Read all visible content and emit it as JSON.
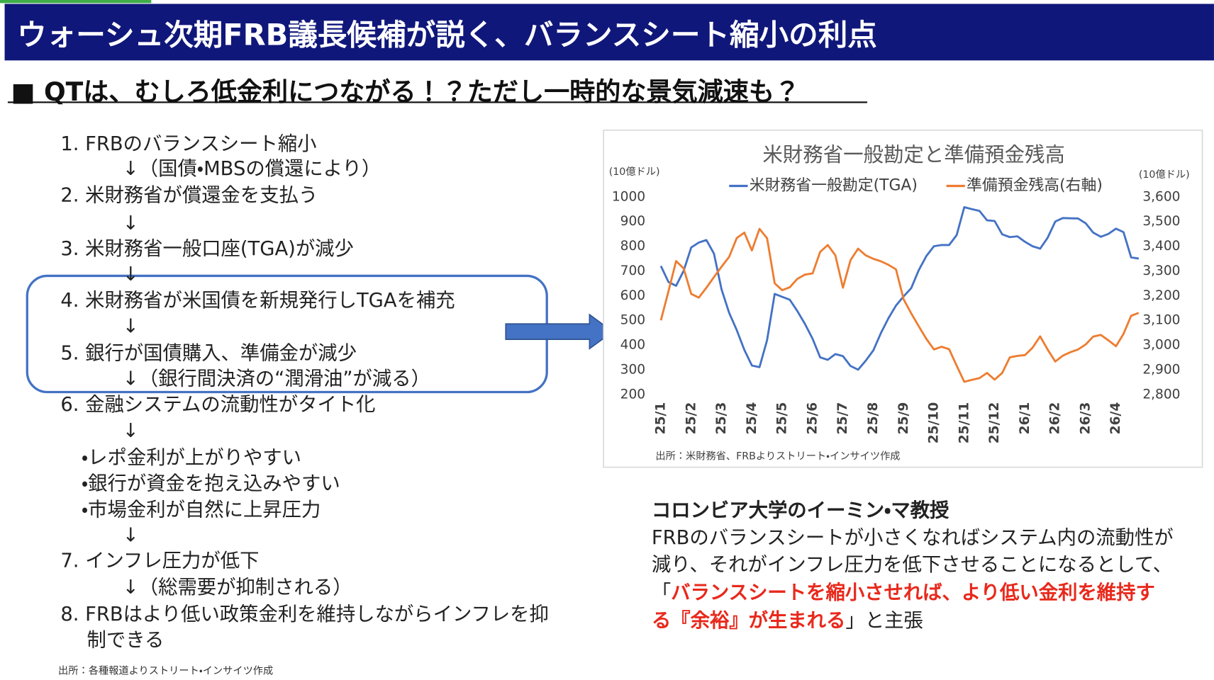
{
  "header": {
    "title": "ウォーシュ次期FRB議長候補が説く、バランスシート縮小の利点"
  },
  "subtitle": "■ QTは、むしろ低金利につながる！？ただし一時的な景気減速も？",
  "steps": [
    "1. FRBのバランスシート縮小",
    "↓（国債・MBSの償還により）",
    "2.  米財務省が償還金を支払う",
    "↓",
    "3.  米財務省一般口座(TGA)が減少",
    "↓",
    "4.  米財務省が米国債を新規発行しTGAを補充",
    "↓",
    "5. 銀行が国債購入、準備金が減少",
    "↓（銀行間決済の“潤滑油”が減る）",
    "6. 金融システムの流動性がタイト化",
    "↓",
    "・レポ金利が上がりやすい",
    "・銀行が資金を抱え込みやすい",
    "・市場金利が自然に上昇圧力",
    "↓",
    "7. インフレ圧力が低下",
    "↓（総需要が抑制される）",
    "8. FRBはより低い政策金利を維持しながらインフレを抑",
    "制できる"
  ],
  "left_source": "出所：各種報道よりストリート・インサイツ作成",
  "chart_data": {
    "type": "line",
    "title": "米財務省一般勘定と準備預金残高",
    "y_unit_label": "(10億ドル)",
    "y2_unit_label": "(10億ドル)",
    "source": "出所：米財務省、FRBよりストリート・インサイツ作成",
    "categories": [
      "25/1",
      null,
      null,
      null,
      "25/2",
      null,
      null,
      null,
      "25/3",
      null,
      null,
      null,
      "25/4",
      null,
      null,
      null,
      "25/5",
      null,
      null,
      null,
      "25/6",
      null,
      null,
      null,
      "25/7",
      null,
      null,
      null,
      "25/8",
      null,
      null,
      null,
      "25/9",
      null,
      null,
      null,
      "25/10",
      null,
      null,
      null,
      "25/11",
      null,
      null,
      null,
      "25/12",
      null,
      null,
      null,
      "26/1",
      null,
      null,
      null,
      "26/2",
      null,
      null,
      null,
      "26/3",
      null,
      null,
      null,
      "26/4",
      null,
      null,
      null
    ],
    "series": [
      {
        "name": "米財務省一般勘定(TGA)",
        "color": "#4472c4",
        "values": [
          720,
          655,
          640,
          700,
          795,
          815,
          825,
          770,
          625,
          530,
          460,
          380,
          317,
          310,
          420,
          607,
          595,
          583,
          537,
          485,
          425,
          350,
          340,
          363,
          355,
          315,
          300,
          336,
          378,
          448,
          508,
          560,
          597,
          630,
          703,
          760,
          800,
          805,
          805,
          845,
          958,
          950,
          943,
          905,
          902,
          848,
          837,
          840,
          818,
          800,
          790,
          835,
          900,
          914,
          913,
          912,
          893,
          855,
          838,
          850,
          871,
          857,
          755,
          750
        ]
      },
      {
        "name": "準備預金残高(右軸)",
        "color": "#ed7d31",
        "axis": "y2",
        "values": [
          3100,
          3218,
          3340,
          3310,
          3207,
          3192,
          3232,
          3275,
          3317,
          3357,
          3433,
          3455,
          3383,
          3470,
          3432,
          3250,
          3222,
          3234,
          3268,
          3285,
          3290,
          3377,
          3405,
          3363,
          3232,
          3343,
          3390,
          3363,
          3349,
          3339,
          3325,
          3306,
          3185,
          3128,
          3076,
          3025,
          2982,
          2993,
          2983,
          2916,
          2851,
          2859,
          2866,
          2887,
          2860,
          2887,
          2950,
          2956,
          2959,
          2989,
          3035,
          2981,
          2933,
          2957,
          2971,
          2982,
          3002,
          3034,
          3041,
          3019,
          2995,
          3045,
          3118,
          3130
        ]
      }
    ],
    "ylim": [
      200,
      1000
    ],
    "yticks": [
      200,
      300,
      400,
      500,
      600,
      700,
      800,
      900,
      1000
    ],
    "y2lim": [
      2800,
      3600
    ],
    "y2ticks": [
      {
        "value": 2800,
        "label": "2,800"
      },
      {
        "value": 2900,
        "label": "2,900"
      },
      {
        "value": 3000,
        "label": "3,000"
      },
      {
        "value": 3100,
        "label": "3,100"
      },
      {
        "value": 3200,
        "label": "3,200"
      },
      {
        "value": 3300,
        "label": "3,300"
      },
      {
        "value": 3400,
        "label": "3,400"
      },
      {
        "value": 3500,
        "label": "3,500"
      },
      {
        "value": 3600,
        "label": "3,600"
      }
    ],
    "grid": false
  },
  "quote": {
    "speaker": "コロンビア大学のイーミン・マ教授",
    "lines": [
      "FRBのバランスシートが小さくなればシステム内の流動性が",
      "減り、それがインフレ圧力を低下させることになるとして、"
    ],
    "open": "「",
    "emphasis": [
      "バランスシートを縮小させれば、より低い金利を維持す",
      "る『余裕』が生まれる"
    ],
    "close": "」と主張"
  }
}
